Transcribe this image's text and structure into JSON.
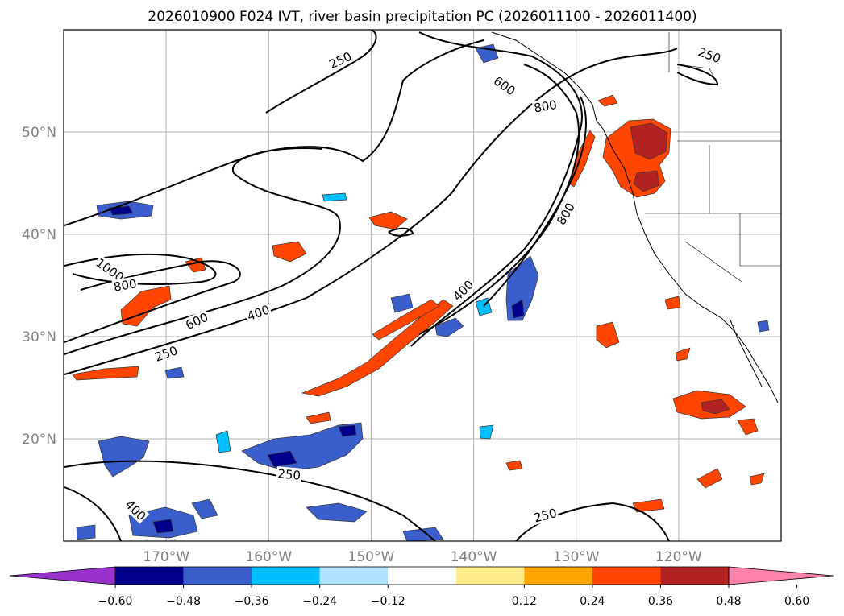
{
  "title": "2026010900 F024 IVT, river basin precipitation PC (2026011100 - 2026011400)",
  "map": {
    "lon_range": [
      -180,
      -110
    ],
    "lat_range": [
      10,
      60
    ],
    "lon_ticks": [
      {
        "lon": -170,
        "label": "170°W"
      },
      {
        "lon": -160,
        "label": "160°W"
      },
      {
        "lon": -150,
        "label": "150°W"
      },
      {
        "lon": -140,
        "label": "140°W"
      },
      {
        "lon": -130,
        "label": "130°W"
      },
      {
        "lon": -120,
        "label": "120°W"
      }
    ],
    "lat_ticks": [
      {
        "lat": 50,
        "label": "50°N"
      },
      {
        "lat": 40,
        "label": "40°N"
      },
      {
        "lat": 30,
        "label": "30°N"
      },
      {
        "lat": 20,
        "label": "20°N"
      }
    ],
    "grid": true
  },
  "contour_labels": [
    {
      "text": "250",
      "lon": -153,
      "lat": 57.0,
      "rot": -25
    },
    {
      "text": "250",
      "lon": -117,
      "lat": 57.5,
      "rot": 20
    },
    {
      "text": "600",
      "lon": -137,
      "lat": 54.5,
      "rot": 35
    },
    {
      "text": "800",
      "lon": -133,
      "lat": 52.5,
      "rot": -10
    },
    {
      "text": "800",
      "lon": -131,
      "lat": 42.0,
      "rot": -60
    },
    {
      "text": "400",
      "lon": -141,
      "lat": 34.5,
      "rot": -45
    },
    {
      "text": "1000",
      "lon": -175.5,
      "lat": 36.5,
      "rot": 35
    },
    {
      "text": "800",
      "lon": -174,
      "lat": 35.0,
      "rot": -10
    },
    {
      "text": "600",
      "lon": -167,
      "lat": 31.5,
      "rot": -25
    },
    {
      "text": "400",
      "lon": -161,
      "lat": 32.3,
      "rot": -20
    },
    {
      "text": "250",
      "lon": -170,
      "lat": 28.3,
      "rot": -20
    },
    {
      "text": "250",
      "lon": -158,
      "lat": 16.5,
      "rot": 5
    },
    {
      "text": "400",
      "lon": -173,
      "lat": 13.0,
      "rot": 45
    },
    {
      "text": "250",
      "lon": -133,
      "lat": 12.5,
      "rot": -15
    }
  ],
  "colorbar": {
    "tick_labels": [
      "−0.60",
      "−0.48",
      "−0.36",
      "−0.24",
      "−0.12",
      "0.12",
      "0.24",
      "0.36",
      "0.48",
      "0.60"
    ],
    "colors": [
      "#9932cc",
      "#00008b",
      "#3a5fcd",
      "#00bfff",
      "#b0e2ff",
      "#ffffff",
      "#ffec8b",
      "#ffa500",
      "#ff4500",
      "#b22222",
      "#ff82ab"
    ]
  }
}
